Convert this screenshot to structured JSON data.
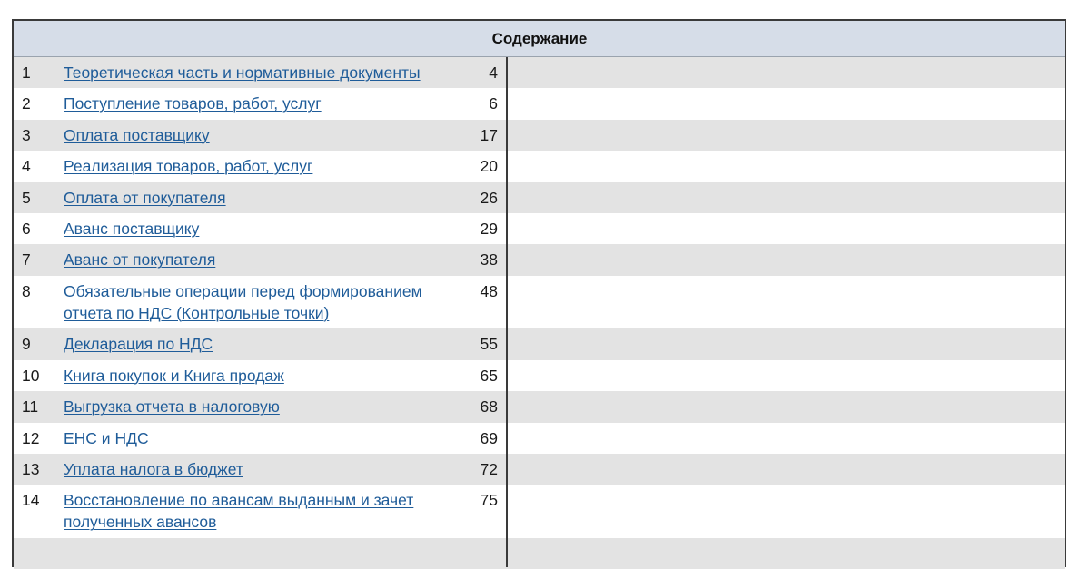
{
  "toc": {
    "title": "Содержание",
    "entries": [
      {
        "num": "1",
        "title": "Теоретическая часть и нормативные документы",
        "page": "4"
      },
      {
        "num": "2",
        "title": "Поступление товаров, работ, услуг",
        "page": "6"
      },
      {
        "num": "3",
        "title": "Оплата поставщику",
        "page": "17"
      },
      {
        "num": "4",
        "title": "Реализация товаров, работ, услуг",
        "page": "20"
      },
      {
        "num": "5",
        "title": "Оплата от покупателя",
        "page": "26"
      },
      {
        "num": "6",
        "title": "Аванс поставщику",
        "page": "29"
      },
      {
        "num": "7",
        "title": "Аванс от покупателя",
        "page": "38"
      },
      {
        "num": "8",
        "title": "Обязательные операции перед формированием отчета по НДС (Контрольные точки)",
        "page": "48"
      },
      {
        "num": "9",
        "title": "Декларация по НДС",
        "page": "55"
      },
      {
        "num": "10",
        "title": "Книга покупок и Книга продаж",
        "page": "65"
      },
      {
        "num": "11",
        "title": "Выгрузка отчета в налоговую",
        "page": "68"
      },
      {
        "num": "12",
        "title": "ЕНС и НДС",
        "page": "69"
      },
      {
        "num": "13",
        "title": "Уплата налога в бюджет",
        "page": "72"
      },
      {
        "num": "14",
        "title": "Восстановление по авансам выданным и зачет полученных авансов",
        "page": "75"
      }
    ]
  }
}
